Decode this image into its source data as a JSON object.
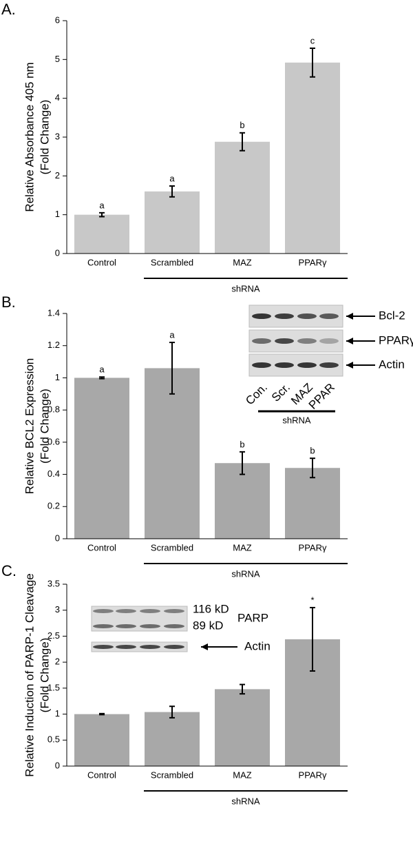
{
  "chart_data": [
    {
      "type": "bar",
      "panel": "A.",
      "y_label": "Relative Absorbance 405 nm",
      "y_label_2": "(Fold Change)",
      "categories": [
        "Control",
        "Scrambled",
        "MAZ",
        "PPARγ"
      ],
      "values": [
        1.0,
        1.6,
        2.88,
        4.92
      ],
      "errors": [
        0.05,
        0.14,
        0.23,
        0.37
      ],
      "annotations": [
        "a",
        "a",
        "b",
        "c"
      ],
      "group_label": "shRNA",
      "color": "#c8c8c8",
      "ylim": [
        0,
        6
      ],
      "yticks": [
        0,
        1,
        2,
        3,
        4,
        5,
        6
      ]
    },
    {
      "type": "bar",
      "panel": "B.",
      "y_label": "Relative BCL2 Expression",
      "y_label_2": "(Fold Change)",
      "categories": [
        "Control",
        "Scrambled",
        "MAZ",
        "PPARγ"
      ],
      "values": [
        1.0,
        1.06,
        0.47,
        0.44
      ],
      "errors": [
        0.005,
        0.16,
        0.07,
        0.06
      ],
      "annotations": [
        "a",
        "a",
        "b",
        "b"
      ],
      "group_label": "shRNA",
      "color": "#a8a8a8",
      "ylim": [
        0,
        1.4
      ],
      "yticks": [
        0,
        0.2,
        0.4,
        0.6,
        0.8,
        1,
        1.2,
        1.4
      ],
      "inset": {
        "bands": [
          "Bcl-2",
          "PPARγ",
          "Actin"
        ],
        "lanes": [
          "Con.",
          "Scr.",
          "MAZ",
          "PPAR"
        ],
        "group_label": "shRNA"
      }
    },
    {
      "type": "bar",
      "panel": "C.",
      "y_label": "Relative Induction of PARP-1 Cleavage",
      "y_label_2": "(Fold Change)",
      "categories": [
        "Control",
        "Scrambled",
        "MAZ",
        "PPARγ"
      ],
      "values": [
        1.0,
        1.04,
        1.48,
        2.44
      ],
      "errors": [
        0.01,
        0.11,
        0.09,
        0.61
      ],
      "annotations": [
        null,
        null,
        null,
        "*"
      ],
      "group_label": "shRNA",
      "color": "#a8a8a8",
      "ylim": [
        0,
        3.5
      ],
      "yticks": [
        0,
        0.5,
        1,
        1.5,
        2,
        2.5,
        3,
        3.5
      ],
      "inset": {
        "band_sizes": [
          "116 kD",
          "89 kD"
        ],
        "protein": "PARP",
        "loading": "Actin"
      }
    }
  ]
}
